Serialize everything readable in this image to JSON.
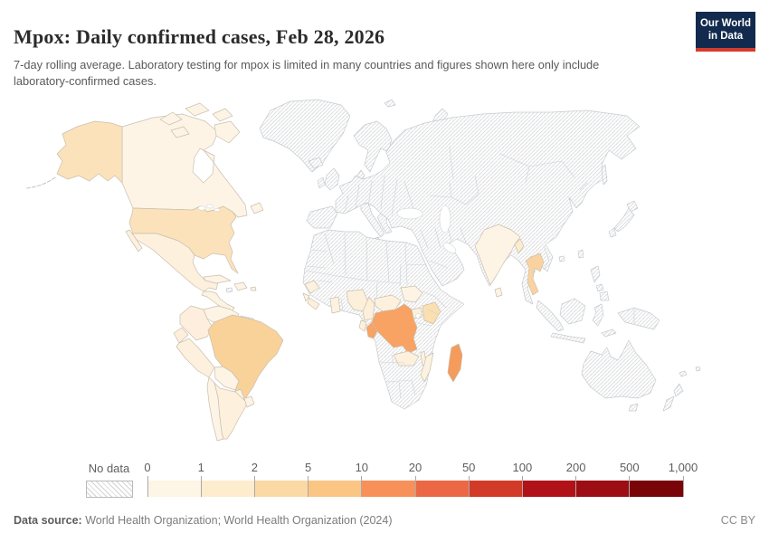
{
  "header": {
    "title": "Mpox: Daily confirmed cases, Feb 28, 2026",
    "subtitle": "7-day rolling average. Laboratory testing for mpox is limited in many countries and figures shown here only include laboratory-confirmed cases."
  },
  "logo": {
    "line1": "Our World",
    "line2": "in Data",
    "bg": "#122a4e",
    "accent": "#d33c2d"
  },
  "legend": {
    "no_data_label": "No data",
    "ticks": [
      "0",
      "1",
      "2",
      "5",
      "10",
      "20",
      "50",
      "100",
      "200",
      "500",
      "1,000"
    ],
    "bin_colors": [
      "#fdf5e5",
      "#fdeccd",
      "#fbd9a4",
      "#fbc584",
      "#f79159",
      "#ec6845",
      "#d23b27",
      "#b11218",
      "#9c0e13",
      "#7a0508"
    ]
  },
  "footer": {
    "source_label": "Data source:",
    "source_text": " World Health Organization; World Health Organization (2024)",
    "license": "CC BY"
  },
  "map": {
    "ocean_color": "#ffffff",
    "no_data_pattern": "diagonal-hatch",
    "fills": {
      "usa": "#fbe2ba",
      "canada": "#fdf4e6",
      "mexico": "#fdf0dd",
      "central-america": "#fdf3e3",
      "cuba": "#fdf4e6",
      "hispaniola": "#fdf4e6",
      "puerto-rico": "#fdf4e6",
      "colombia": "#fdeede",
      "venezuela": "#fdf4e6",
      "ecuador": "#fdefdb",
      "peru": "#fdf0dd",
      "brazil": "#f9d29a",
      "bolivia": "#fdf4e6",
      "paraguay": "#fdf2e0",
      "chile": "#fdf4e6",
      "argentina": "#fdf0dd",
      "uruguay": "#fdf4e6",
      "guinea": "#fdf2e0",
      "sierra-leone": "#fdf4e6",
      "liberia": "#fdf0da",
      "ghana": "#fdf2e0",
      "nigeria": "#fdf0da",
      "cameroon": "#fdefd8",
      "central-african-republic": "#fdf1dd",
      "south-sudan": "#fdf4e6",
      "uganda": "#fdf1dd",
      "kenya": "#fbdfb0",
      "drc": "#f8a263",
      "congo": "#f8a263",
      "gabon": "#fdf1dd",
      "zambia": "#fdf1dd",
      "malawi": "#fdf2e0",
      "mozambique": "#fdf2e0",
      "madagascar": "#f59b5c",
      "india": "#fdf4e6",
      "bangladesh": "#fceccd",
      "sri-lanka": "#fdf4e6",
      "thailand": "#fad2a0"
    }
  },
  "chart_data": {
    "type": "choropleth_map",
    "title": "Mpox: Daily confirmed cases, Feb 28, 2026",
    "date": "Feb 28, 2026",
    "subtitle": "7-day rolling average. Laboratory testing for mpox is limited in many countries and figures shown here only include laboratory-confirmed cases.",
    "legend_bins": [
      "0",
      "1",
      "2",
      "5",
      "10",
      "20",
      "50",
      "100",
      "200",
      "500",
      "1,000"
    ],
    "legend_bin_colors": [
      "#fdf5e5",
      "#fdeccd",
      "#fbd9a4",
      "#fbc584",
      "#f79159",
      "#ec6845",
      "#d23b27",
      "#b11218",
      "#9c0e13",
      "#7a0508"
    ],
    "no_data": "hatched",
    "countries": [
      {
        "name": "United States",
        "bin": "2-5"
      },
      {
        "name": "Canada",
        "bin": "0-1"
      },
      {
        "name": "Mexico",
        "bin": "1-2"
      },
      {
        "name": "Guatemala",
        "bin": "0-1"
      },
      {
        "name": "Honduras",
        "bin": "0-1"
      },
      {
        "name": "Nicaragua",
        "bin": "0-1"
      },
      {
        "name": "Costa Rica",
        "bin": "0-1"
      },
      {
        "name": "Panama",
        "bin": "0-1"
      },
      {
        "name": "Cuba",
        "bin": "0-1"
      },
      {
        "name": "Dominican Republic",
        "bin": "0-1"
      },
      {
        "name": "Colombia",
        "bin": "1-2"
      },
      {
        "name": "Venezuela",
        "bin": "0-1"
      },
      {
        "name": "Ecuador",
        "bin": "1-2"
      },
      {
        "name": "Peru",
        "bin": "1-2"
      },
      {
        "name": "Brazil",
        "bin": "5-10"
      },
      {
        "name": "Bolivia",
        "bin": "0-1"
      },
      {
        "name": "Paraguay",
        "bin": "0-1"
      },
      {
        "name": "Chile",
        "bin": "0-1"
      },
      {
        "name": "Argentina",
        "bin": "1-2"
      },
      {
        "name": "Uruguay",
        "bin": "0-1"
      },
      {
        "name": "Guinea",
        "bin": "1-2"
      },
      {
        "name": "Sierra Leone",
        "bin": "0-1"
      },
      {
        "name": "Liberia",
        "bin": "1-2"
      },
      {
        "name": "Ghana",
        "bin": "1-2"
      },
      {
        "name": "Nigeria",
        "bin": "1-2"
      },
      {
        "name": "Cameroon",
        "bin": "1-2"
      },
      {
        "name": "Central African Republic",
        "bin": "1-2"
      },
      {
        "name": "South Sudan",
        "bin": "0-1"
      },
      {
        "name": "Uganda",
        "bin": "1-2"
      },
      {
        "name": "Kenya",
        "bin": "2-5"
      },
      {
        "name": "Democratic Republic of Congo",
        "bin": "10-20"
      },
      {
        "name": "Congo",
        "bin": "10-20"
      },
      {
        "name": "Gabon",
        "bin": "1-2"
      },
      {
        "name": "Zambia",
        "bin": "1-2"
      },
      {
        "name": "Malawi",
        "bin": "1-2"
      },
      {
        "name": "Mozambique",
        "bin": "1-2"
      },
      {
        "name": "Madagascar",
        "bin": "10-20"
      },
      {
        "name": "India",
        "bin": "0-1"
      },
      {
        "name": "Bangladesh",
        "bin": "1-2"
      },
      {
        "name": "Sri Lanka",
        "bin": "0-1"
      },
      {
        "name": "Thailand",
        "bin": "2-5"
      }
    ]
  }
}
